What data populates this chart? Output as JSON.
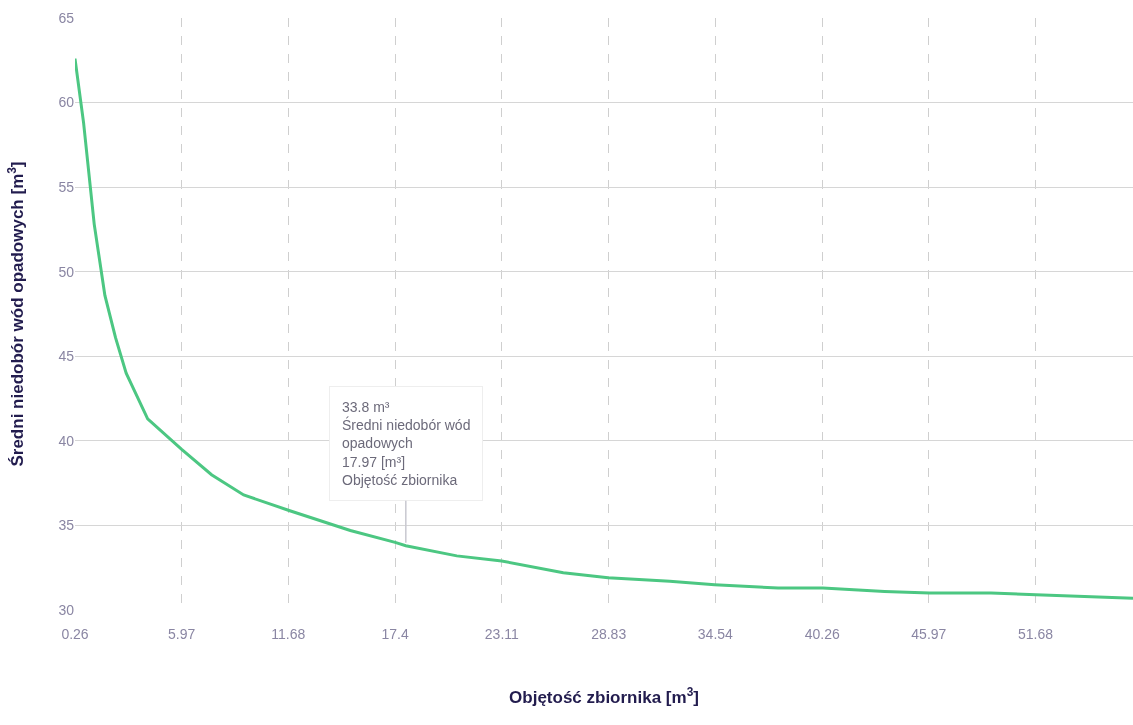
{
  "chart_data": {
    "type": "line",
    "xlabel": "Objętość zbiornika [m$^{3}$]",
    "ylabel": "Średni niedobór wód opadowych [m$^{3}$]",
    "series": [
      {
        "color": "#4cc782",
        "x": [
          0.26,
          0.72,
          1.29,
          1.86,
          2.43,
          3.0,
          4.15,
          5.97,
          7.57,
          9.29,
          11.68,
          15.0,
          17.4,
          17.97,
          20.7,
          23.1,
          26.4,
          28.8,
          32.1,
          34.5,
          37.9,
          40.3,
          43.6,
          46.0,
          49.3,
          51.7,
          56.9
        ],
        "values": [
          62.6,
          58.8,
          52.8,
          48.6,
          46.1,
          44.0,
          41.3,
          39.5,
          38.0,
          36.8,
          35.9,
          34.7,
          34.0,
          33.8,
          33.2,
          32.9,
          32.2,
          31.9,
          31.7,
          31.5,
          31.3,
          31.3,
          31.1,
          31.0,
          31.0,
          30.9,
          30.7
        ]
      }
    ],
    "xlim": [
      0.26,
      56.9
    ],
    "xticks": [
      0.26,
      5.97,
      11.68,
      17.4,
      23.11,
      28.83,
      34.54,
      40.26,
      45.97,
      51.68
    ],
    "ylim": [
      30,
      65
    ],
    "yticks": [
      30,
      35,
      40,
      45,
      50,
      55,
      60,
      65
    ],
    "grid": true,
    "marker": "none",
    "line_style": "solid",
    "annotations": [
      {
        "text": "33.8 m³\nŚredni niedobór wód\nopadowych\n17.97 [m³]\nObjętość zbiornika",
        "x": 17.97,
        "y": 33.8
      }
    ]
  }
}
